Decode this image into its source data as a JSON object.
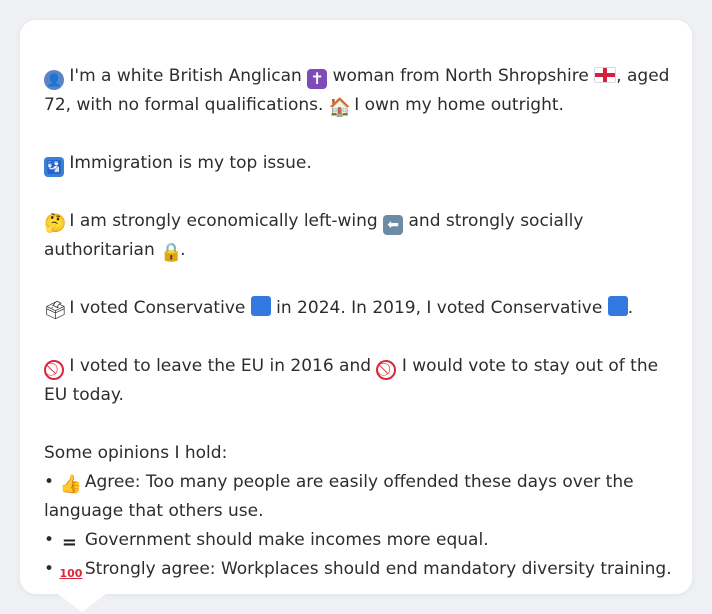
{
  "profile": {
    "identity": {
      "text_1": "I'm a white British Anglican",
      "text_2": "woman from North Shropshire",
      "text_3": ", aged 72, with no formal qualifications.",
      "text_4": "I own my home outright."
    },
    "issue": {
      "text": "Immigration is my top issue."
    },
    "ideology": {
      "text_1": "I am strongly economically left-wing",
      "text_2": "and strongly socially authoritarian",
      "text_3": "."
    },
    "votes": {
      "text_1": "I voted Conservative",
      "text_2": "in 2024. In 2019, I voted Conservative",
      "text_3": "."
    },
    "eu": {
      "text_1": "I voted to leave the EU in 2016 and",
      "text_2": "I would vote to stay out of the EU today."
    },
    "opinions": {
      "header": "Some opinions I hold:",
      "items": [
        {
          "bullet": "•",
          "text": "Agree: Too many people are easily offended these days over the language that others use."
        },
        {
          "bullet": "•",
          "text": "Government should make incomes more equal."
        },
        {
          "bullet": "•",
          "text": "Strongly agree: Workplaces should end mandatory diversity training."
        }
      ]
    }
  },
  "icons": {
    "person": "👤",
    "cross": "✝",
    "house": "🏠",
    "passport": "🛂",
    "think": "🤔",
    "leftarrow": "⬅",
    "lock": "🔒",
    "ballot": "🗳",
    "noentry": "🚫",
    "thumb": "👍",
    "equal": "🟰",
    "hundred": "💯"
  },
  "colors": {
    "background": "#eef0f3",
    "card": "#ffffff",
    "text": "#2d2d2d",
    "blue_square": "#3479e0",
    "no_entry": "#d9283a"
  }
}
